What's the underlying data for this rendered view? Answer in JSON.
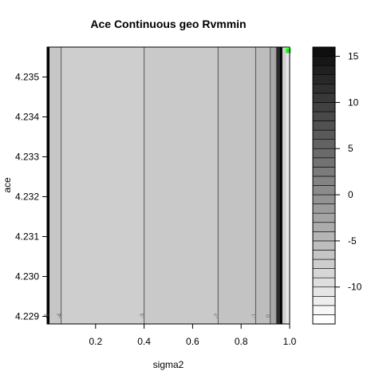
{
  "chart_data": {
    "type": "heatmap",
    "subtype": "filled-contour",
    "title": "Ace Continuous  geo  Rvmmin",
    "xlabel": "sigma2",
    "ylabel": "ace",
    "xlim": [
      0.0,
      1.0
    ],
    "ylim": [
      4.22881,
      4.23575
    ],
    "x_ticks": [
      {
        "value": 0.2,
        "label": "0.2"
      },
      {
        "value": 0.4,
        "label": "0.4"
      },
      {
        "value": 0.6,
        "label": "0.6"
      },
      {
        "value": 0.8,
        "label": "0.8"
      },
      {
        "value": 1.0,
        "label": "1.0"
      }
    ],
    "y_ticks": [
      {
        "value": 4.229,
        "label": "4.229"
      },
      {
        "value": 4.23,
        "label": "4.230"
      },
      {
        "value": 4.231,
        "label": "4.231"
      },
      {
        "value": 4.232,
        "label": "4.232"
      },
      {
        "value": 4.233,
        "label": "4.233"
      },
      {
        "value": 4.234,
        "label": "4.234"
      },
      {
        "value": 4.235,
        "label": "4.235"
      }
    ],
    "contour_lines": [
      {
        "level": -5,
        "x": 0.005,
        "label": "-5"
      },
      {
        "level": -4,
        "x": 0.058,
        "label": "-4"
      },
      {
        "level": -3,
        "x": 0.4,
        "label": "-3"
      },
      {
        "level": -2,
        "x": 0.705,
        "label": "-2"
      },
      {
        "level": -1,
        "x": 0.86,
        "label": "-1"
      },
      {
        "level": 0,
        "x": 0.92,
        "label": "0"
      },
      {
        "level": 1,
        "x": 0.945,
        "label": ""
      },
      {
        "level": 5,
        "x": 0.965,
        "label": ""
      }
    ],
    "bands": [
      {
        "x0": 0.0,
        "x1": 0.005,
        "color": "#111111"
      },
      {
        "x0": 0.005,
        "x1": 0.058,
        "color": "#c6c6c6"
      },
      {
        "x0": 0.058,
        "x1": 0.4,
        "color": "#cecece"
      },
      {
        "x0": 0.4,
        "x1": 0.705,
        "color": "#c9c9c9"
      },
      {
        "x0": 0.705,
        "x1": 0.86,
        "color": "#c3c3c3"
      },
      {
        "x0": 0.86,
        "x1": 0.92,
        "color": "#bdbdbd"
      },
      {
        "x0": 0.92,
        "x1": 0.945,
        "color": "#a8a8a8"
      },
      {
        "x0": 0.945,
        "x1": 0.965,
        "color": "#2a2a2a"
      },
      {
        "x0": 0.965,
        "x1": 0.985,
        "color": "#cfcfcf"
      },
      {
        "x0": 0.985,
        "x1": 1.0,
        "color": "#e6e6e6"
      }
    ],
    "marker": {
      "x": 0.995,
      "y": 4.2357,
      "color": "#00ff00"
    },
    "colorbar": {
      "range": [
        -14,
        16
      ],
      "step": 1,
      "ticks": [
        {
          "value": 15,
          "label": "15"
        },
        {
          "value": 10,
          "label": "10"
        },
        {
          "value": 5,
          "label": "5"
        },
        {
          "value": 0,
          "label": "0"
        },
        {
          "value": -5,
          "label": "-5"
        },
        {
          "value": -10,
          "label": "-10"
        }
      ]
    }
  }
}
